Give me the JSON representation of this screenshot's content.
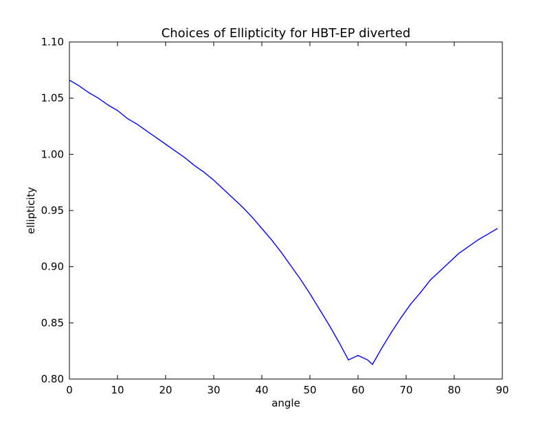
{
  "chart_data": {
    "type": "line",
    "title": "Choices of Ellipticity for HBT-EP diverted",
    "xlabel": "angle",
    "ylabel": "ellipticity",
    "xlim": [
      0,
      90
    ],
    "ylim": [
      0.8,
      1.1
    ],
    "xticks": [
      "0",
      "10",
      "20",
      "30",
      "40",
      "50",
      "60",
      "70",
      "80",
      "90"
    ],
    "yticks": [
      "0.80",
      "0.85",
      "0.90",
      "0.95",
      "1.00",
      "1.05",
      "1.10"
    ],
    "grid": false,
    "series": [
      {
        "color": "#0000ff",
        "x": [
          0,
          2,
          4,
          6,
          8,
          10,
          12,
          14,
          16,
          18,
          20,
          22,
          24,
          26,
          28,
          30,
          32,
          34,
          36,
          38,
          40,
          42,
          44,
          46,
          48,
          50,
          52,
          54,
          56,
          58,
          60,
          62,
          63,
          65,
          67,
          69,
          71,
          73,
          75,
          77,
          79,
          81,
          83,
          85,
          87,
          89
        ],
        "y": [
          1.066,
          1.061,
          1.055,
          1.05,
          1.044,
          1.039,
          1.032,
          1.027,
          1.021,
          1.015,
          1.009,
          1.003,
          0.997,
          0.99,
          0.984,
          0.977,
          0.969,
          0.961,
          0.953,
          0.944,
          0.934,
          0.924,
          0.913,
          0.901,
          0.889,
          0.876,
          0.862,
          0.848,
          0.833,
          0.817,
          0.821,
          0.817,
          0.813,
          0.828,
          0.842,
          0.855,
          0.867,
          0.877,
          0.888,
          0.896,
          0.904,
          0.912,
          0.918,
          0.924,
          0.929,
          0.934
        ]
      }
    ]
  }
}
